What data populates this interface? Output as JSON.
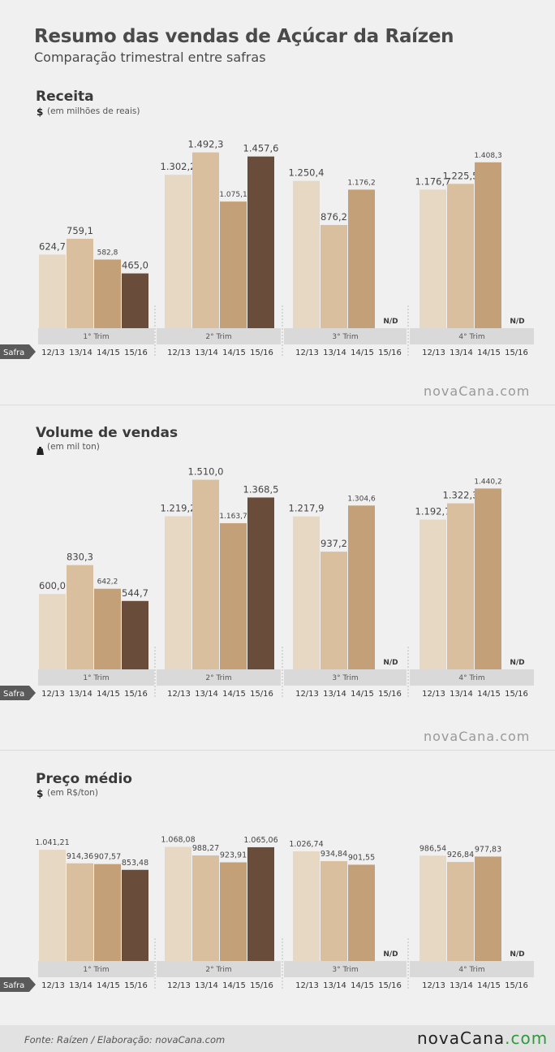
{
  "title": "Resumo das vendas de Açúcar da Raízen",
  "subtitle": "Comparação trimestral entre safras",
  "brand": "novaCana.com",
  "footer": {
    "source": "Fonte:  Raízen / Elaboração:  novaCana.com",
    "brand_prefix": "nova",
    "brand_name": "Cana",
    "brand_suffix": ".com"
  },
  "colors": {
    "12/13": "#e7d8c4",
    "13/14": "#d9bf9d",
    "14/15": "#c4a078",
    "15/16": "#6a4c3b",
    "band": "#d9d9d9"
  },
  "chart_data": [
    {
      "type": "bar",
      "title": "Receita",
      "unit_symbol": "$",
      "unit": "(em milhões de reais)",
      "row_label": "Safra",
      "groups": [
        "1° Trim",
        "2° Trim",
        "3° Trim",
        "4° Trim"
      ],
      "categories": [
        "12/13",
        "13/14",
        "14/15",
        "15/16"
      ],
      "missing_label": "N/D",
      "values": [
        [
          624.7,
          759.1,
          582.8,
          465.0
        ],
        [
          1302.2,
          1492.3,
          1075.1,
          1457.6
        ],
        [
          1250.4,
          876.2,
          1176.2,
          null
        ],
        [
          1176.7,
          1225.5,
          1408.3,
          null
        ]
      ],
      "labels": [
        [
          "624,7",
          "759,1",
          "582,8",
          "465,0"
        ],
        [
          "1.302,2",
          "1.492,3",
          "1.075,1",
          "1.457,6"
        ],
        [
          "1.250,4",
          "876,2",
          "1.176,2",
          "N/D"
        ],
        [
          "1.176,7",
          "1.225,5",
          "1.408,3",
          "N/D"
        ]
      ]
    },
    {
      "type": "bar",
      "title": "Volume de vendas",
      "unit_symbol": "weight-icon",
      "unit": "(em mil ton)",
      "row_label": "Safra",
      "groups": [
        "1° Trim",
        "2° Trim",
        "3° Trim",
        "4° Trim"
      ],
      "categories": [
        "12/13",
        "13/14",
        "14/15",
        "15/16"
      ],
      "missing_label": "N/D",
      "values": [
        [
          600.0,
          830.3,
          642.2,
          544.7
        ],
        [
          1219.2,
          1510.0,
          1163.7,
          1368.5
        ],
        [
          1217.9,
          937.2,
          1304.6,
          null
        ],
        [
          1192.7,
          1322.3,
          1440.2,
          null
        ]
      ],
      "labels": [
        [
          "600,0",
          "830,3",
          "642,2",
          "544,7"
        ],
        [
          "1.219,2",
          "1.510,0",
          "1.163,7",
          "1.368,5"
        ],
        [
          "1.217,9",
          "937,2",
          "1.304,6",
          "N/D"
        ],
        [
          "1.192,7",
          "1.322,3",
          "1.440,2",
          "N/D"
        ]
      ]
    },
    {
      "type": "bar",
      "title": "Preço médio",
      "unit_symbol": "$",
      "unit": "(em R$/ton)",
      "row_label": "Safra",
      "groups": [
        "1° Trim",
        "2° Trim",
        "3° Trim",
        "4° Trim"
      ],
      "categories": [
        "12/13",
        "13/14",
        "14/15",
        "15/16"
      ],
      "missing_label": "N/D",
      "values": [
        [
          1041.21,
          914.36,
          907.57,
          853.48
        ],
        [
          1068.08,
          988.27,
          923.91,
          1065.06
        ],
        [
          1026.74,
          934.84,
          901.55,
          null
        ],
        [
          986.54,
          926.84,
          977.83,
          null
        ]
      ],
      "labels": [
        [
          "1.041,21",
          "914,36",
          "907,57",
          "853,48"
        ],
        [
          "1.068,08",
          "988,27",
          "923,91",
          "1.065,06"
        ],
        [
          "1.026,74",
          "934,84",
          "901,55",
          "N/D"
        ],
        [
          "986,54",
          "926,84",
          "977,83",
          "N/D"
        ]
      ]
    }
  ]
}
